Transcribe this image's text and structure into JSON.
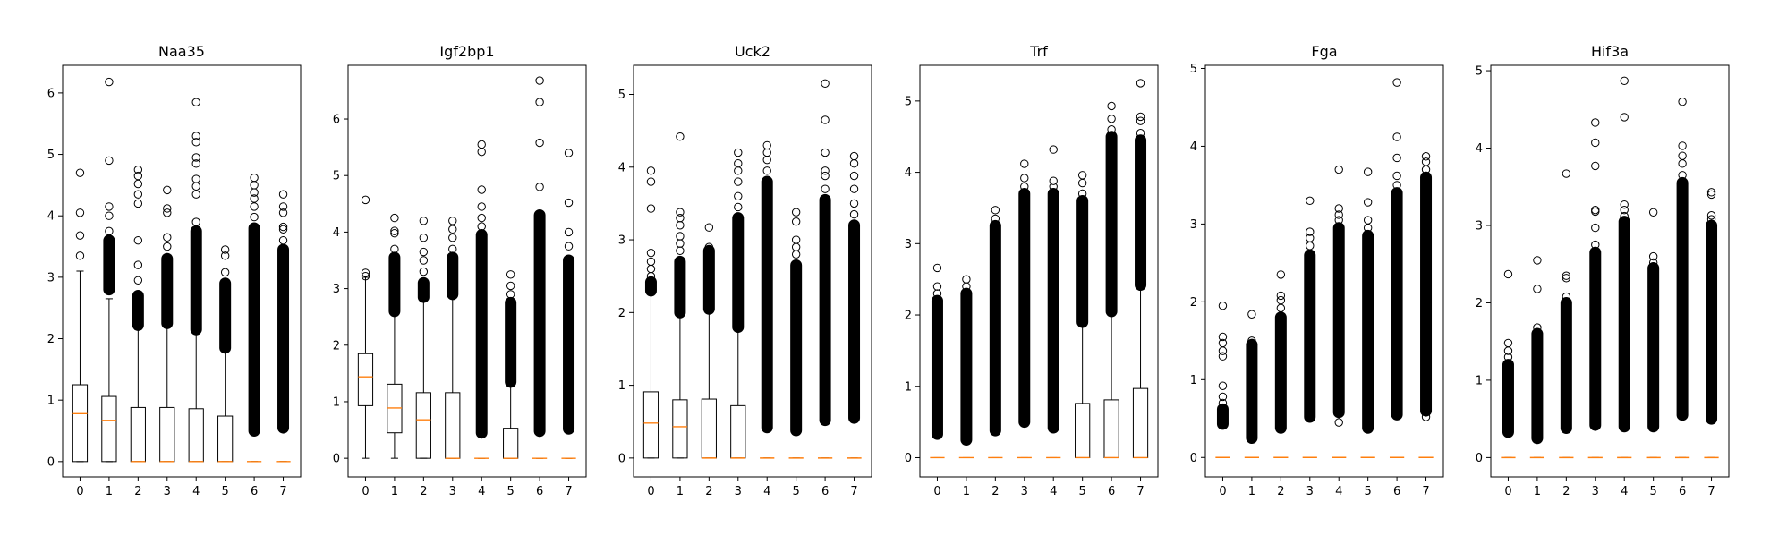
{
  "chart_data": [
    {
      "type": "box",
      "title": "Naa35",
      "categories": [
        "0",
        "1",
        "2",
        "3",
        "4",
        "5",
        "6",
        "7"
      ],
      "ylim": [
        -0.25,
        6.45
      ],
      "yticks": [
        0,
        1,
        2,
        3,
        4,
        5,
        6
      ],
      "boxes": [
        {
          "q1": 0,
          "median": 0.78,
          "q3": 1.25,
          "whislo": 0,
          "whishi": 3.1,
          "band": null,
          "fliers": [
            3.35,
            3.68,
            4.05,
            4.7
          ]
        },
        {
          "q1": 0,
          "median": 0.67,
          "q3": 1.06,
          "whislo": 0,
          "whishi": 2.65,
          "band": [
            2.8,
            3.6
          ],
          "fliers": [
            3.75,
            4.0,
            4.15,
            4.9,
            6.18
          ]
        },
        {
          "q1": 0,
          "median": 0,
          "q3": 0.88,
          "whislo": 0,
          "whishi": 2.15,
          "band": [
            2.22,
            2.7
          ],
          "fliers": [
            2.95,
            3.2,
            3.6,
            4.2,
            4.35,
            4.52,
            4.65,
            4.75
          ]
        },
        {
          "q1": 0,
          "median": 0,
          "q3": 0.88,
          "whislo": 0,
          "whishi": 2.2,
          "band": [
            2.25,
            3.3
          ],
          "fliers": [
            3.5,
            3.65,
            4.05,
            4.12,
            4.42
          ]
        },
        {
          "q1": 0,
          "median": 0,
          "q3": 0.86,
          "whislo": 0,
          "whishi": 2.1,
          "band": [
            2.15,
            3.75
          ],
          "fliers": [
            3.9,
            4.35,
            4.48,
            4.6,
            4.85,
            4.95,
            5.2,
            5.3,
            5.85
          ]
        },
        {
          "q1": 0,
          "median": 0,
          "q3": 0.74,
          "whislo": 0,
          "whishi": 1.8,
          "band": [
            1.85,
            2.9
          ],
          "fliers": [
            3.08,
            3.35,
            3.45
          ]
        },
        {
          "q1": 0,
          "median": 0,
          "q3": 0,
          "whislo": 0,
          "whishi": 0,
          "band": [
            0.5,
            3.8
          ],
          "fliers": [
            3.98,
            4.15,
            4.28,
            4.38,
            4.5,
            4.62
          ]
        },
        {
          "q1": 0,
          "median": 0,
          "q3": 0,
          "whislo": 0,
          "whishi": 0,
          "band": [
            0.55,
            3.45
          ],
          "fliers": [
            3.6,
            3.78,
            3.82,
            4.05,
            4.15,
            4.35
          ]
        }
      ]
    },
    {
      "type": "box",
      "title": "Igf2bp1",
      "categories": [
        "0",
        "1",
        "2",
        "3",
        "4",
        "5",
        "6",
        "7"
      ],
      "ylim": [
        -0.33,
        6.95
      ],
      "yticks": [
        0,
        1,
        2,
        3,
        4,
        5,
        6
      ],
      "boxes": [
        {
          "q1": 0.93,
          "median": 1.44,
          "q3": 1.85,
          "whislo": 0,
          "whishi": 3.2,
          "band": null,
          "fliers": [
            3.22,
            3.28,
            4.57
          ]
        },
        {
          "q1": 0.45,
          "median": 0.89,
          "q3": 1.31,
          "whislo": 0,
          "whishi": 2.55,
          "band": [
            2.6,
            3.55
          ],
          "fliers": [
            3.7,
            3.98,
            4.02,
            4.25
          ]
        },
        {
          "q1": 0,
          "median": 0.68,
          "q3": 1.16,
          "whislo": 0,
          "whishi": 2.8,
          "band": [
            2.85,
            3.1
          ],
          "fliers": [
            3.3,
            3.5,
            3.65,
            3.9,
            4.2
          ]
        },
        {
          "q1": 0,
          "median": 0,
          "q3": 1.16,
          "whislo": 0,
          "whishi": 2.85,
          "band": [
            2.9,
            3.55
          ],
          "fliers": [
            3.7,
            3.9,
            4.05,
            4.2
          ]
        },
        {
          "q1": 0,
          "median": 0,
          "q3": 0,
          "whislo": 0,
          "whishi": 0,
          "band": [
            0.45,
            3.95
          ],
          "fliers": [
            4.1,
            4.25,
            4.45,
            4.75,
            5.42,
            5.55
          ]
        },
        {
          "q1": 0,
          "median": 0,
          "q3": 0.53,
          "whislo": 0,
          "whishi": 1.3,
          "band": [
            1.35,
            2.75
          ],
          "fliers": [
            2.9,
            3.05,
            3.25
          ]
        },
        {
          "q1": 0,
          "median": 0,
          "q3": 0,
          "whislo": 0,
          "whishi": 0,
          "band": [
            0.48,
            4.3
          ],
          "fliers": [
            4.8,
            5.58,
            6.3,
            6.68
          ]
        },
        {
          "q1": 0,
          "median": 0,
          "q3": 0,
          "whislo": 0,
          "whishi": 0,
          "band": [
            0.52,
            3.5
          ],
          "fliers": [
            3.75,
            4.0,
            4.52,
            5.4
          ]
        }
      ]
    },
    {
      "type": "box",
      "title": "Uck2",
      "categories": [
        "0",
        "1",
        "2",
        "3",
        "4",
        "5",
        "6",
        "7"
      ],
      "ylim": [
        -0.26,
        5.4
      ],
      "yticks": [
        0,
        1,
        2,
        3,
        4,
        5
      ],
      "boxes": [
        {
          "q1": 0,
          "median": 0.48,
          "q3": 0.91,
          "whislo": 0,
          "whishi": 2.25,
          "band": [
            2.3,
            2.42
          ],
          "fliers": [
            2.5,
            2.6,
            2.7,
            2.82,
            3.43,
            3.8,
            3.95
          ]
        },
        {
          "q1": 0,
          "median": 0.43,
          "q3": 0.8,
          "whislo": 0,
          "whishi": 1.95,
          "band": [
            2.0,
            2.7
          ],
          "fliers": [
            2.85,
            2.95,
            3.05,
            3.2,
            3.3,
            3.38,
            4.42
          ]
        },
        {
          "q1": 0,
          "median": 0,
          "q3": 0.81,
          "whislo": 0,
          "whishi": 2.0,
          "band": [
            2.05,
            2.85
          ],
          "fliers": [
            2.9,
            3.17
          ]
        },
        {
          "q1": 0,
          "median": 0,
          "q3": 0.72,
          "whislo": 0,
          "whishi": 1.75,
          "band": [
            1.8,
            3.3
          ],
          "fliers": [
            3.45,
            3.6,
            3.8,
            3.95,
            4.05,
            4.2
          ]
        },
        {
          "q1": 0,
          "median": 0,
          "q3": 0,
          "whislo": 0,
          "whishi": 0,
          "band": [
            0.42,
            3.8
          ],
          "fliers": [
            3.95,
            4.1,
            4.2,
            4.3
          ]
        },
        {
          "q1": 0,
          "median": 0,
          "q3": 0,
          "whislo": 0,
          "whishi": 0,
          "band": [
            0.38,
            2.65
          ],
          "fliers": [
            2.8,
            2.9,
            3.0,
            3.25,
            3.38
          ]
        },
        {
          "q1": 0,
          "median": 0,
          "q3": 0,
          "whislo": 0,
          "whishi": 0,
          "band": [
            0.52,
            3.55
          ],
          "fliers": [
            3.7,
            3.88,
            3.95,
            4.2,
            4.65,
            5.15
          ]
        },
        {
          "q1": 0,
          "median": 0,
          "q3": 0,
          "whislo": 0,
          "whishi": 0,
          "band": [
            0.55,
            3.2
          ],
          "fliers": [
            3.35,
            3.5,
            3.7,
            3.88,
            4.05,
            4.15
          ]
        }
      ]
    },
    {
      "type": "box",
      "title": "Trf",
      "categories": [
        "0",
        "1",
        "2",
        "3",
        "4",
        "5",
        "6",
        "7"
      ],
      "ylim": [
        -0.27,
        5.5
      ],
      "yticks": [
        0,
        1,
        2,
        3,
        4,
        5
      ],
      "boxes": [
        {
          "q1": 0,
          "median": 0,
          "q3": 0,
          "whislo": 0,
          "whishi": 0,
          "band": [
            0.33,
            2.2
          ],
          "fliers": [
            2.3,
            2.4,
            2.66
          ]
        },
        {
          "q1": 0,
          "median": 0,
          "q3": 0,
          "whislo": 0,
          "whishi": 0,
          "band": [
            0.25,
            2.3
          ],
          "fliers": [
            2.4,
            2.5
          ]
        },
        {
          "q1": 0,
          "median": 0,
          "q3": 0,
          "whislo": 0,
          "whishi": 0,
          "band": [
            0.38,
            3.25
          ],
          "fliers": [
            3.35,
            3.47
          ]
        },
        {
          "q1": 0,
          "median": 0,
          "q3": 0,
          "whislo": 0,
          "whishi": 0,
          "band": [
            0.5,
            3.7
          ],
          "fliers": [
            3.8,
            3.92,
            4.12
          ]
        },
        {
          "q1": 0,
          "median": 0,
          "q3": 0,
          "whislo": 0,
          "whishi": 0,
          "band": [
            0.42,
            3.7
          ],
          "fliers": [
            3.8,
            3.88,
            4.32
          ]
        },
        {
          "q1": 0,
          "median": 0,
          "q3": 0.76,
          "whislo": 0,
          "whishi": 1.85,
          "band": [
            1.9,
            3.6
          ],
          "fliers": [
            3.7,
            3.85,
            3.96
          ]
        },
        {
          "q1": 0,
          "median": 0,
          "q3": 0.81,
          "whislo": 0,
          "whishi": 2.0,
          "band": [
            2.05,
            4.5
          ],
          "fliers": [
            4.6,
            4.75,
            4.93
          ]
        },
        {
          "q1": 0,
          "median": 0,
          "q3": 0.97,
          "whislo": 0,
          "whishi": 2.38,
          "band": [
            2.42,
            4.45
          ],
          "fliers": [
            4.55,
            4.72,
            4.78,
            5.25
          ]
        }
      ]
    },
    {
      "type": "box",
      "title": "Fga",
      "categories": [
        "0",
        "1",
        "2",
        "3",
        "4",
        "5",
        "6",
        "7"
      ],
      "ylim": [
        -0.25,
        5.04
      ],
      "yticks": [
        0,
        1,
        2,
        3,
        4,
        5
      ],
      "boxes": [
        {
          "q1": 0,
          "median": 0,
          "q3": 0,
          "whislo": 0,
          "whishi": 0,
          "band": [
            0.43,
            0.62
          ],
          "fliers": [
            0.7,
            0.78,
            0.92,
            1.3,
            1.37,
            1.47,
            1.55,
            1.95
          ]
        },
        {
          "q1": 0,
          "median": 0,
          "q3": 0,
          "whislo": 0,
          "whishi": 0,
          "band": [
            0.25,
            1.45
          ],
          "fliers": [
            1.5,
            1.84
          ]
        },
        {
          "q1": 0,
          "median": 0,
          "q3": 0,
          "whislo": 0,
          "whishi": 0,
          "band": [
            0.38,
            1.8
          ],
          "fliers": [
            1.92,
            2.02,
            2.08,
            2.35
          ]
        },
        {
          "q1": 0,
          "median": 0,
          "q3": 0,
          "whislo": 0,
          "whishi": 0,
          "band": [
            0.52,
            2.6
          ],
          "fliers": [
            2.72,
            2.82,
            2.9,
            3.3
          ]
        },
        {
          "q1": 0,
          "median": 0,
          "q3": 0,
          "whislo": 0,
          "whishi": 0,
          "band": [
            0.58,
            2.95
          ],
          "fliers": [
            0.45,
            3.05,
            3.12,
            3.2,
            3.7
          ]
        },
        {
          "q1": 0,
          "median": 0,
          "q3": 0,
          "whislo": 0,
          "whishi": 0,
          "band": [
            0.38,
            2.85
          ],
          "fliers": [
            2.95,
            3.05,
            3.28,
            3.67
          ]
        },
        {
          "q1": 0,
          "median": 0,
          "q3": 0,
          "whislo": 0,
          "whishi": 0,
          "band": [
            0.55,
            3.4
          ],
          "fliers": [
            3.5,
            3.62,
            3.85,
            4.12,
            4.82
          ]
        },
        {
          "q1": 0,
          "median": 0,
          "q3": 0,
          "whislo": 0,
          "whishi": 0,
          "band": [
            0.6,
            3.6
          ],
          "fliers": [
            0.52,
            3.7,
            3.8,
            3.87
          ]
        }
      ]
    },
    {
      "type": "box",
      "title": "Hif3a",
      "categories": [
        "0",
        "1",
        "2",
        "3",
        "4",
        "5",
        "6",
        "7"
      ],
      "ylim": [
        -0.25,
        5.07
      ],
      "yticks": [
        0,
        1,
        2,
        3,
        4,
        5
      ],
      "boxes": [
        {
          "q1": 0,
          "median": 0,
          "q3": 0,
          "whislo": 0,
          "whishi": 0,
          "band": [
            0.33,
            1.2
          ],
          "fliers": [
            1.3,
            1.38,
            1.48,
            2.37
          ]
        },
        {
          "q1": 0,
          "median": 0,
          "q3": 0,
          "whislo": 0,
          "whishi": 0,
          "band": [
            0.25,
            1.6
          ],
          "fliers": [
            1.68,
            2.18,
            2.55
          ]
        },
        {
          "q1": 0,
          "median": 0,
          "q3": 0,
          "whislo": 0,
          "whishi": 0,
          "band": [
            0.38,
            2.0
          ],
          "fliers": [
            2.08,
            2.32,
            2.35,
            3.67
          ]
        },
        {
          "q1": 0,
          "median": 0,
          "q3": 0,
          "whislo": 0,
          "whishi": 0,
          "band": [
            0.42,
            2.65
          ],
          "fliers": [
            2.75,
            2.97,
            3.18,
            3.2,
            3.77,
            4.07,
            4.33
          ]
        },
        {
          "q1": 0,
          "median": 0,
          "q3": 0,
          "whislo": 0,
          "whishi": 0,
          "band": [
            0.4,
            3.05
          ],
          "fliers": [
            3.12,
            3.2,
            3.27,
            4.4,
            4.87
          ]
        },
        {
          "q1": 0,
          "median": 0,
          "q3": 0,
          "whislo": 0,
          "whishi": 0,
          "band": [
            0.4,
            2.45
          ],
          "fliers": [
            2.52,
            2.6,
            3.17
          ]
        },
        {
          "q1": 0,
          "median": 0,
          "q3": 0,
          "whislo": 0,
          "whishi": 0,
          "band": [
            0.55,
            3.55
          ],
          "fliers": [
            3.65,
            3.8,
            3.9,
            4.03,
            4.6
          ]
        },
        {
          "q1": 0,
          "median": 0,
          "q3": 0,
          "whislo": 0,
          "whishi": 0,
          "band": [
            0.5,
            3.0
          ],
          "fliers": [
            3.08,
            3.13,
            3.4,
            3.43
          ]
        }
      ]
    }
  ]
}
